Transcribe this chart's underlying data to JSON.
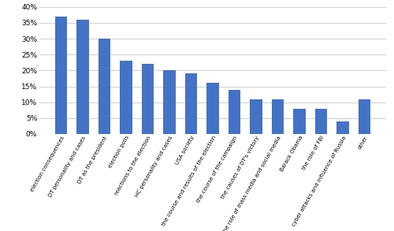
{
  "categories": [
    "election consequences",
    "DT personality and cases",
    "DT as the president",
    "election polls",
    "reactions to the election",
    "HC personality and cases",
    "USA society",
    "the course and results of the election",
    "the course of the campaign",
    "the causes of DT's victory",
    "the role of mass media and social media",
    "Barack Obama",
    "the role of FBI",
    "cyber attacks and influence of Russia",
    "other"
  ],
  "values": [
    0.37,
    0.36,
    0.3,
    0.23,
    0.22,
    0.2,
    0.19,
    0.16,
    0.14,
    0.11,
    0.11,
    0.08,
    0.08,
    0.04,
    0.11
  ],
  "bar_color": "#4472C4",
  "ylim": [
    0,
    0.4
  ],
  "yticks": [
    0.0,
    0.05,
    0.1,
    0.15,
    0.2,
    0.25,
    0.3,
    0.35,
    0.4
  ],
  "background_color": "#ffffff",
  "grid_color": "#c8c8c8",
  "label_fontsize": 5.0,
  "ylabel_fontsize": 6.5
}
